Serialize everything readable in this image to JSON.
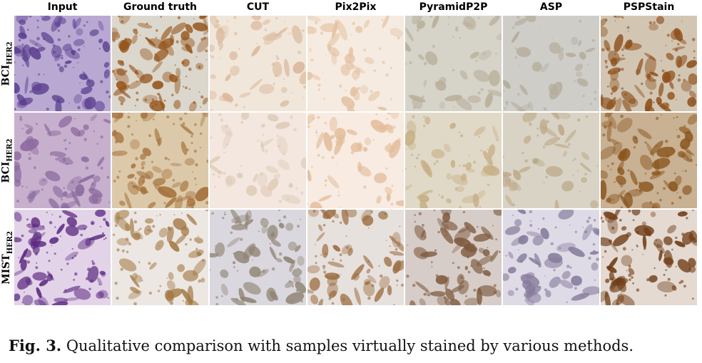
{
  "figure": {
    "columns": [
      "Input",
      "Ground truth",
      "CUT",
      "Pix2Pix",
      "PyramidP2P",
      "ASP",
      "PSPStain"
    ],
    "rows": [
      {
        "label_main": "BCI",
        "label_sub": "HER2"
      },
      {
        "label_main": "BCI",
        "label_sub": "HER2"
      },
      {
        "label_main": "MIST",
        "label_sub": "HER2"
      }
    ],
    "caption_label": "Fig. 3.",
    "caption_text": "Qualitative comparison with samples virtually stained by various methods."
  },
  "tile_colors": [
    [
      {
        "bg": "#b9a9d2",
        "fg": "#5b3f8f",
        "density": 0.55
      },
      {
        "bg": "#dcd7cd",
        "fg": "#95541a",
        "density": 0.6
      },
      {
        "bg": "#f1e6da",
        "fg": "#d9b79a",
        "density": 0.35
      },
      {
        "bg": "#f6ebe0",
        "fg": "#e3c2a2",
        "density": 0.35
      },
      {
        "bg": "#d6d3c9",
        "fg": "#b8ae99",
        "density": 0.3
      },
      {
        "bg": "#cfcdc8",
        "fg": "#b3ab99",
        "density": 0.25
      },
      {
        "bg": "#d2c6b3",
        "fg": "#8d4f1a",
        "density": 0.6
      }
    ],
    [
      {
        "bg": "#c7b0cd",
        "fg": "#8c6a9e",
        "density": 0.45
      },
      {
        "bg": "#dcc9a9",
        "fg": "#a3703a",
        "density": 0.5
      },
      {
        "bg": "#f3e7df",
        "fg": "#decab6",
        "density": 0.3
      },
      {
        "bg": "#f8ebe1",
        "fg": "#e2bb98",
        "density": 0.35
      },
      {
        "bg": "#e1d9c7",
        "fg": "#c5ae84",
        "density": 0.35
      },
      {
        "bg": "#d9d3c6",
        "fg": "#bba783",
        "density": 0.3
      },
      {
        "bg": "#c9b193",
        "fg": "#8a561e",
        "density": 0.55
      }
    ],
    [
      {
        "bg": "#e3d3e8",
        "fg": "#5a2880",
        "density": 0.55
      },
      {
        "bg": "#ece7e3",
        "fg": "#a47a45",
        "density": 0.45
      },
      {
        "bg": "#dad8de",
        "fg": "#8f8373",
        "density": 0.45
      },
      {
        "bg": "#e7e1de",
        "fg": "#9a6a3c",
        "density": 0.5
      },
      {
        "bg": "#d7cdc8",
        "fg": "#7e5a3e",
        "density": 0.5
      },
      {
        "bg": "#dfdbe6",
        "fg": "#857a9a",
        "density": 0.45
      },
      {
        "bg": "#e4dad2",
        "fg": "#6e3b14",
        "density": 0.55
      }
    ]
  ]
}
